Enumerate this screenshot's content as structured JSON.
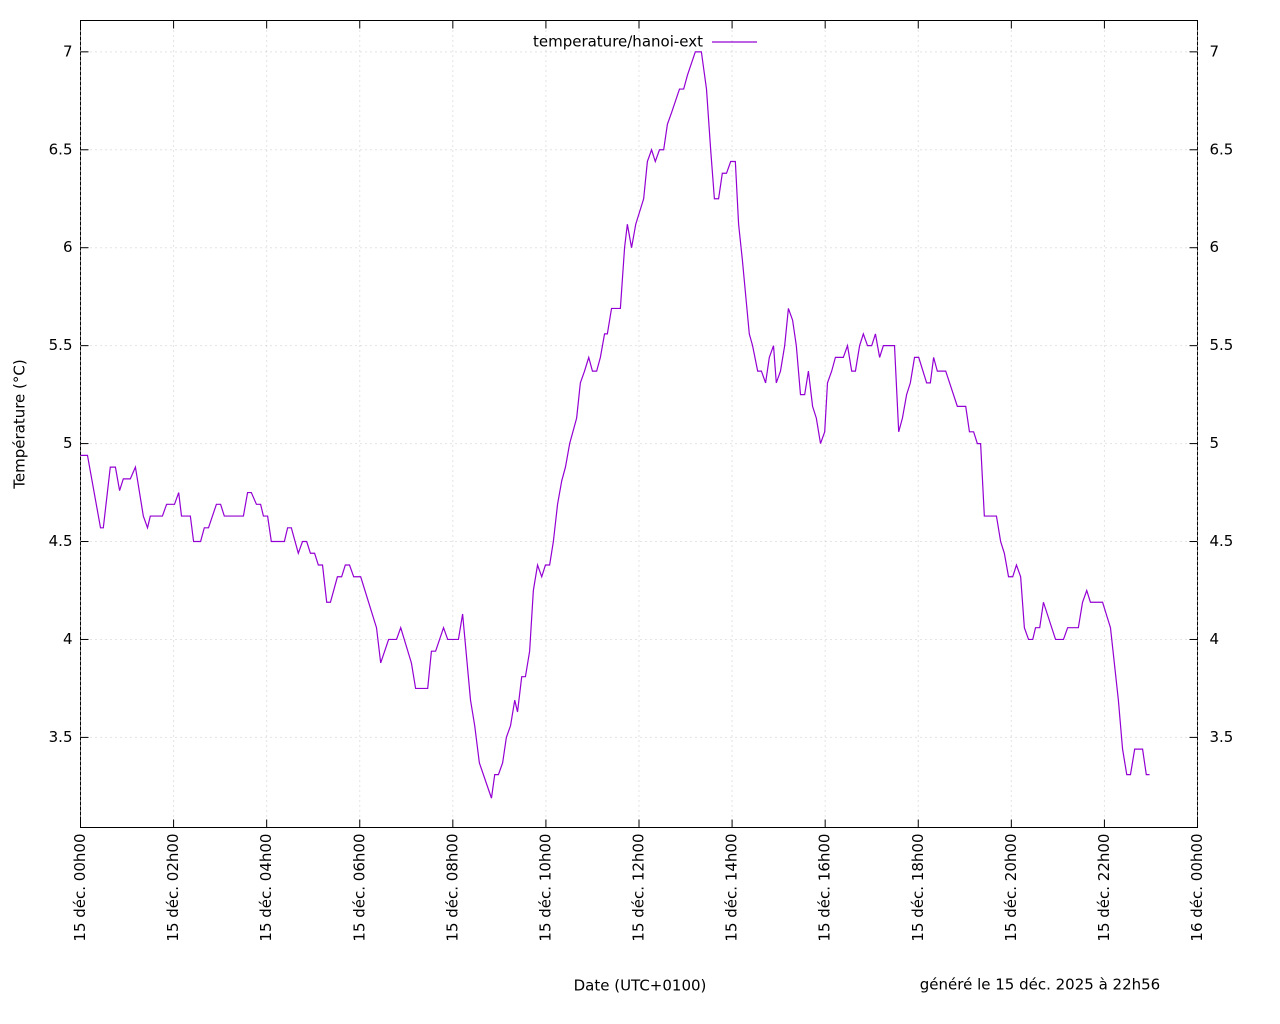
{
  "chart_data": {
    "type": "line",
    "ylabel": "Température (°C)",
    "xlabel": "Date (UTC+0100)",
    "footnote": "généré le 15 déc. 2025 à 22h56",
    "legend": "top",
    "grid": true,
    "xlim": [
      0,
      24
    ],
    "xticks": [
      {
        "value": 0,
        "label": "15 déc. 00h00"
      },
      {
        "value": 2,
        "label": "15 déc. 02h00"
      },
      {
        "value": 4,
        "label": "15 déc. 04h00"
      },
      {
        "value": 6,
        "label": "15 déc. 06h00"
      },
      {
        "value": 8,
        "label": "15 déc. 08h00"
      },
      {
        "value": 10,
        "label": "15 déc. 10h00"
      },
      {
        "value": 12,
        "label": "15 déc. 12h00"
      },
      {
        "value": 14,
        "label": "15 déc. 14h00"
      },
      {
        "value": 16,
        "label": "15 déc. 16h00"
      },
      {
        "value": 18,
        "label": "15 déc. 18h00"
      },
      {
        "value": 20,
        "label": "15 déc. 20h00"
      },
      {
        "value": 22,
        "label": "15 déc. 22h00"
      },
      {
        "value": 24,
        "label": "16 déc. 00h00"
      }
    ],
    "ylim": [
      3.04,
      7.16
    ],
    "yticks": [
      3.5,
      4,
      4.5,
      5,
      5.5,
      6,
      6.5,
      7
    ],
    "x": [
      0,
      0.15,
      0.43,
      0.49,
      0.64,
      0.75,
      0.84,
      0.92,
      1.07,
      1.18,
      1.35,
      1.44,
      1.5,
      1.76,
      1.85,
      2.02,
      2.11,
      2.17,
      2.36,
      2.43,
      2.58,
      2.66,
      2.75,
      2.92,
      3.01,
      3.09,
      3.5,
      3.59,
      3.67,
      3.78,
      3.87,
      3.93,
      4.02,
      4.1,
      4.38,
      4.45,
      4.53,
      4.68,
      4.77,
      4.86,
      4.94,
      5.03,
      5.11,
      5.2,
      5.29,
      5.37,
      5.52,
      5.61,
      5.69,
      5.78,
      5.87,
      6.02,
      6.36,
      6.45,
      6.62,
      6.79,
      6.88,
      7.11,
      7.2,
      7.46,
      7.54,
      7.63,
      7.8,
      7.89,
      8.12,
      8.21,
      8.38,
      8.47,
      8.57,
      8.83,
      8.9,
      8.98,
      9.07,
      9.15,
      9.24,
      9.33,
      9.39,
      9.48,
      9.56,
      9.65,
      9.73,
      9.82,
      9.91,
      9.99,
      10.08,
      10.16,
      10.25,
      10.34,
      10.42,
      10.51,
      10.66,
      10.74,
      10.83,
      10.92,
      11.0,
      11.09,
      11.17,
      11.26,
      11.32,
      11.41,
      11.6,
      11.69,
      11.75,
      11.84,
      11.93,
      12.1,
      12.18,
      12.27,
      12.35,
      12.44,
      12.53,
      12.61,
      12.7,
      12.87,
      12.96,
      13.04,
      13.21,
      13.34,
      13.45,
      13.54,
      13.62,
      13.71,
      13.79,
      13.88,
      13.97,
      14.07,
      14.14,
      14.22,
      14.37,
      14.44,
      14.55,
      14.63,
      14.72,
      14.8,
      14.89,
      14.95,
      15.04,
      15.13,
      15.21,
      15.3,
      15.38,
      15.47,
      15.56,
      15.64,
      15.73,
      15.81,
      15.9,
      15.99,
      16.05,
      16.14,
      16.22,
      16.39,
      16.48,
      16.57,
      16.65,
      16.74,
      16.82,
      16.91,
      17.0,
      17.08,
      17.17,
      17.25,
      17.49,
      17.58,
      17.66,
      17.75,
      17.83,
      17.92,
      18.01,
      18.18,
      18.26,
      18.33,
      18.41,
      18.59,
      18.84,
      19.02,
      19.1,
      19.19,
      19.27,
      19.34,
      19.42,
      19.68,
      19.77,
      19.85,
      19.94,
      20.03,
      20.11,
      20.2,
      20.28,
      20.37,
      20.46,
      20.52,
      20.61,
      20.69,
      20.95,
      21.12,
      21.21,
      21.44,
      21.53,
      21.62,
      21.7,
      21.96,
      22.13,
      22.3,
      22.39,
      22.48,
      22.56,
      22.65,
      22.82,
      22.9,
      22.97
    ],
    "series": [
      {
        "name": "temperature/hanoi-ext",
        "color": "#9400d3",
        "values": [
          4.94,
          4.94,
          4.57,
          4.57,
          4.88,
          4.88,
          4.76,
          4.82,
          4.82,
          4.88,
          4.63,
          4.57,
          4.63,
          4.63,
          4.69,
          4.69,
          4.75,
          4.63,
          4.63,
          4.5,
          4.5,
          4.57,
          4.57,
          4.69,
          4.69,
          4.63,
          4.63,
          4.75,
          4.75,
          4.69,
          4.69,
          4.63,
          4.63,
          4.5,
          4.5,
          4.57,
          4.57,
          4.44,
          4.5,
          4.5,
          4.44,
          4.44,
          4.38,
          4.38,
          4.19,
          4.19,
          4.32,
          4.32,
          4.38,
          4.38,
          4.32,
          4.32,
          4.06,
          3.88,
          4.0,
          4.0,
          4.06,
          3.88,
          3.75,
          3.75,
          3.94,
          3.94,
          4.06,
          4.0,
          4.0,
          4.13,
          3.69,
          3.56,
          3.37,
          3.19,
          3.31,
          3.31,
          3.37,
          3.5,
          3.56,
          3.69,
          3.63,
          3.81,
          3.81,
          3.94,
          4.25,
          4.38,
          4.32,
          4.38,
          4.38,
          4.5,
          4.69,
          4.81,
          4.88,
          5.0,
          5.13,
          5.31,
          5.37,
          5.44,
          5.37,
          5.37,
          5.44,
          5.56,
          5.56,
          5.69,
          5.69,
          6.0,
          6.12,
          6.0,
          6.12,
          6.25,
          6.44,
          6.5,
          6.44,
          6.5,
          6.5,
          6.63,
          6.69,
          6.81,
          6.81,
          6.88,
          7.0,
          7.0,
          6.81,
          6.5,
          6.25,
          6.25,
          6.38,
          6.38,
          6.44,
          6.44,
          6.12,
          5.94,
          5.56,
          5.5,
          5.37,
          5.37,
          5.31,
          5.44,
          5.5,
          5.31,
          5.37,
          5.5,
          5.69,
          5.63,
          5.5,
          5.25,
          5.25,
          5.37,
          5.19,
          5.13,
          5.0,
          5.06,
          5.31,
          5.37,
          5.44,
          5.44,
          5.5,
          5.37,
          5.37,
          5.5,
          5.56,
          5.5,
          5.5,
          5.56,
          5.44,
          5.5,
          5.5,
          5.06,
          5.13,
          5.25,
          5.31,
          5.44,
          5.44,
          5.31,
          5.31,
          5.44,
          5.37,
          5.37,
          5.19,
          5.19,
          5.06,
          5.06,
          5.0,
          5.0,
          4.63,
          4.63,
          4.5,
          4.44,
          4.32,
          4.32,
          4.38,
          4.32,
          4.06,
          4.0,
          4.0,
          4.06,
          4.06,
          4.19,
          4.0,
          4.0,
          4.06,
          4.06,
          4.19,
          4.25,
          4.19,
          4.19,
          4.06,
          3.69,
          3.44,
          3.31,
          3.31,
          3.44,
          3.44,
          3.31,
          3.31
        ]
      }
    ]
  }
}
